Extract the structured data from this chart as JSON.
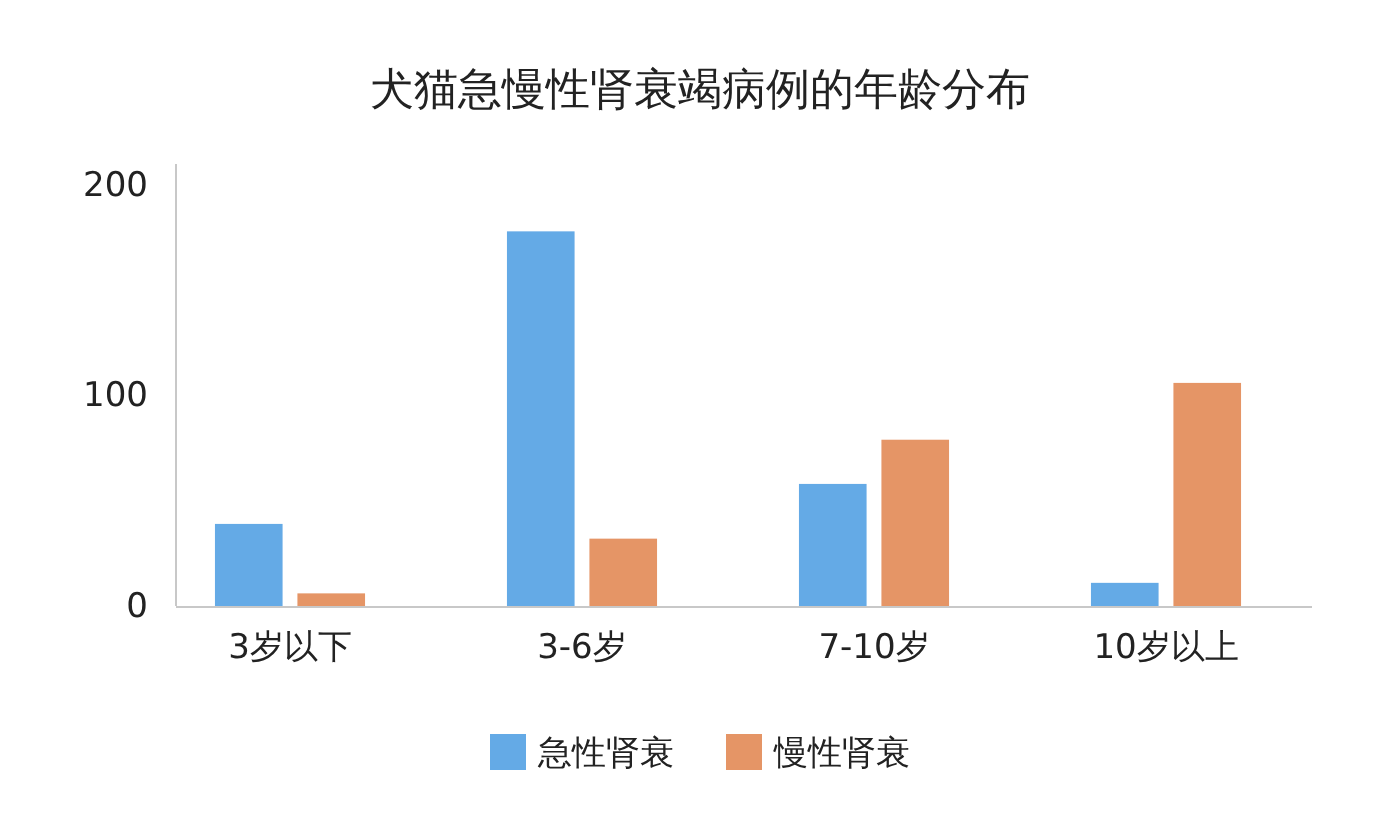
{
  "chart_data": {
    "type": "bar",
    "title": "犬猫急慢性肾衰竭病例的年龄分布",
    "categories": [
      "3岁以下",
      "3-6岁",
      "7-10岁",
      "10岁以上"
    ],
    "series": [
      {
        "name": "急性肾衰",
        "color": "#64aae6",
        "values": [
          39,
          178,
          58,
          11
        ]
      },
      {
        "name": "慢性肾衰",
        "color": "#e59566",
        "values": [
          6,
          32,
          79,
          106
        ]
      }
    ],
    "ylim": [
      0,
      210
    ],
    "yticks": [
      0,
      100,
      200
    ],
    "grid": false,
    "legend": "bottom"
  }
}
